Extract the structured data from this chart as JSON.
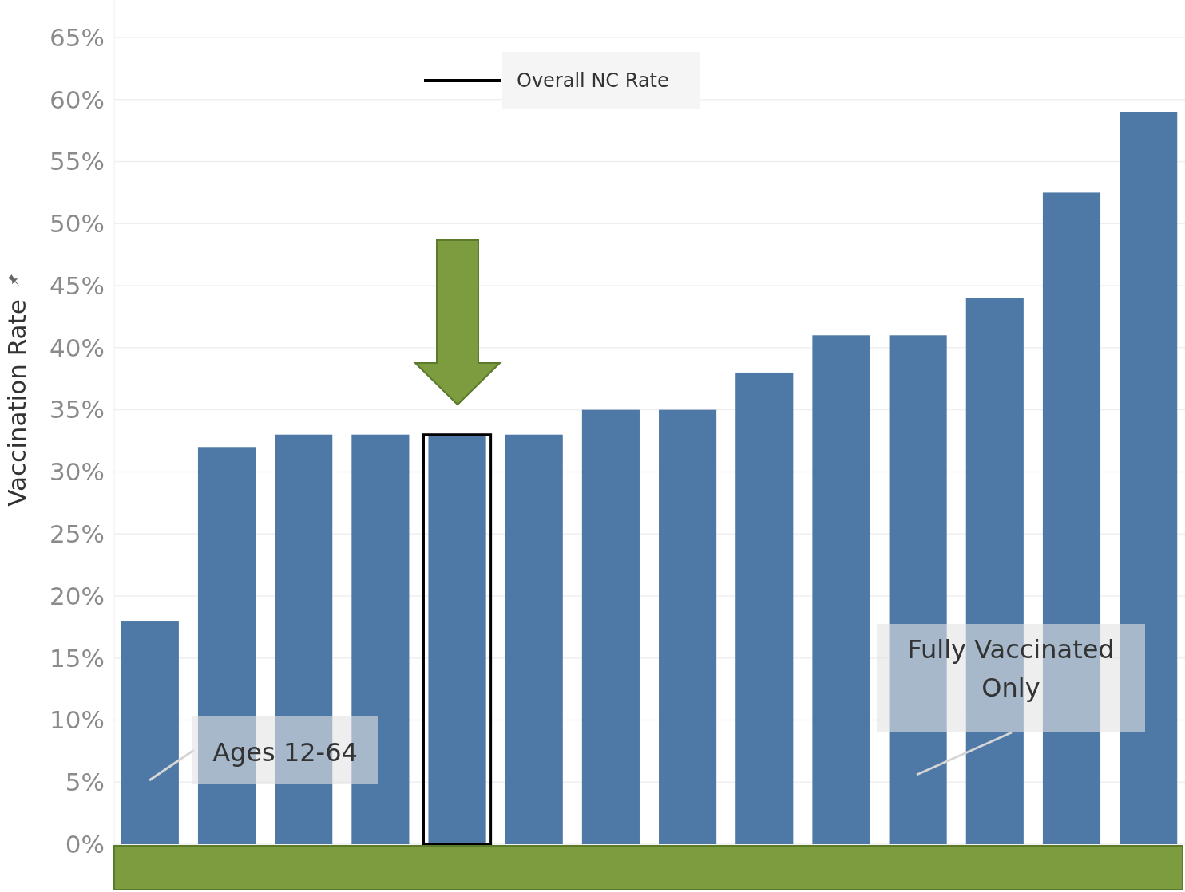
{
  "chart_data": {
    "type": "bar",
    "ylabel": "Vaccination Rate",
    "categories": [
      null,
      null,
      null,
      null,
      null,
      null,
      null,
      null,
      null,
      null,
      null,
      null,
      null,
      null
    ],
    "series": [
      {
        "color": "#4e79a7",
        "values": [
          18,
          32,
          33,
          33,
          33,
          33,
          35,
          35,
          38,
          41,
          41,
          44,
          52.5,
          59
        ]
      },
      {
        "name": "Overall NC Rate",
        "type": "bar",
        "color": "#000000",
        "values": [
          null,
          null,
          null,
          null,
          33,
          null,
          null,
          null,
          null,
          null,
          null,
          null,
          null,
          null
        ]
      }
    ],
    "ylim": [
      0,
      65
    ],
    "yticks": [
      {
        "value": 0,
        "label": "0%"
      },
      {
        "value": 5,
        "label": "5%"
      },
      {
        "value": 10,
        "label": "10%"
      },
      {
        "value": 15,
        "label": "15%"
      },
      {
        "value": 20,
        "label": "20%"
      },
      {
        "value": 25,
        "label": "25%"
      },
      {
        "value": 30,
        "label": "30%"
      },
      {
        "value": 35,
        "label": "35%"
      },
      {
        "value": 40,
        "label": "40%"
      },
      {
        "value": 45,
        "label": "45%"
      },
      {
        "value": 50,
        "label": "50%"
      },
      {
        "value": 55,
        "label": "55%"
      },
      {
        "value": 60,
        "label": "60%"
      },
      {
        "value": 65,
        "label": "65%"
      }
    ],
    "grid": "y",
    "tick_labels": "y",
    "legend": "top",
    "annotations": [
      "Ages 12-64",
      "Fully Vaccinated Only"
    ]
  }
}
